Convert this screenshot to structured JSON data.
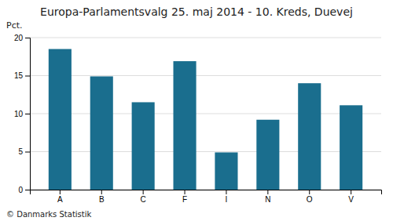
{
  "chart_data": {
    "type": "bar",
    "title": "Europa-Parlamentsvalg 25. maj 2014 - 10. Kreds, Duevej",
    "ylabel": "Pct.",
    "annotations": [
      "© Danmarks Statistik"
    ],
    "categories": [
      "A",
      "B",
      "C",
      "F",
      "I",
      "N",
      "O",
      "V"
    ],
    "values": [
      18.5,
      14.9,
      11.5,
      16.9,
      4.9,
      9.2,
      14.0,
      11.1
    ],
    "color": "#1a6e8e",
    "ylim": [
      0,
      20
    ],
    "yticks": [
      0,
      5,
      10,
      15,
      20
    ],
    "grid": true
  }
}
